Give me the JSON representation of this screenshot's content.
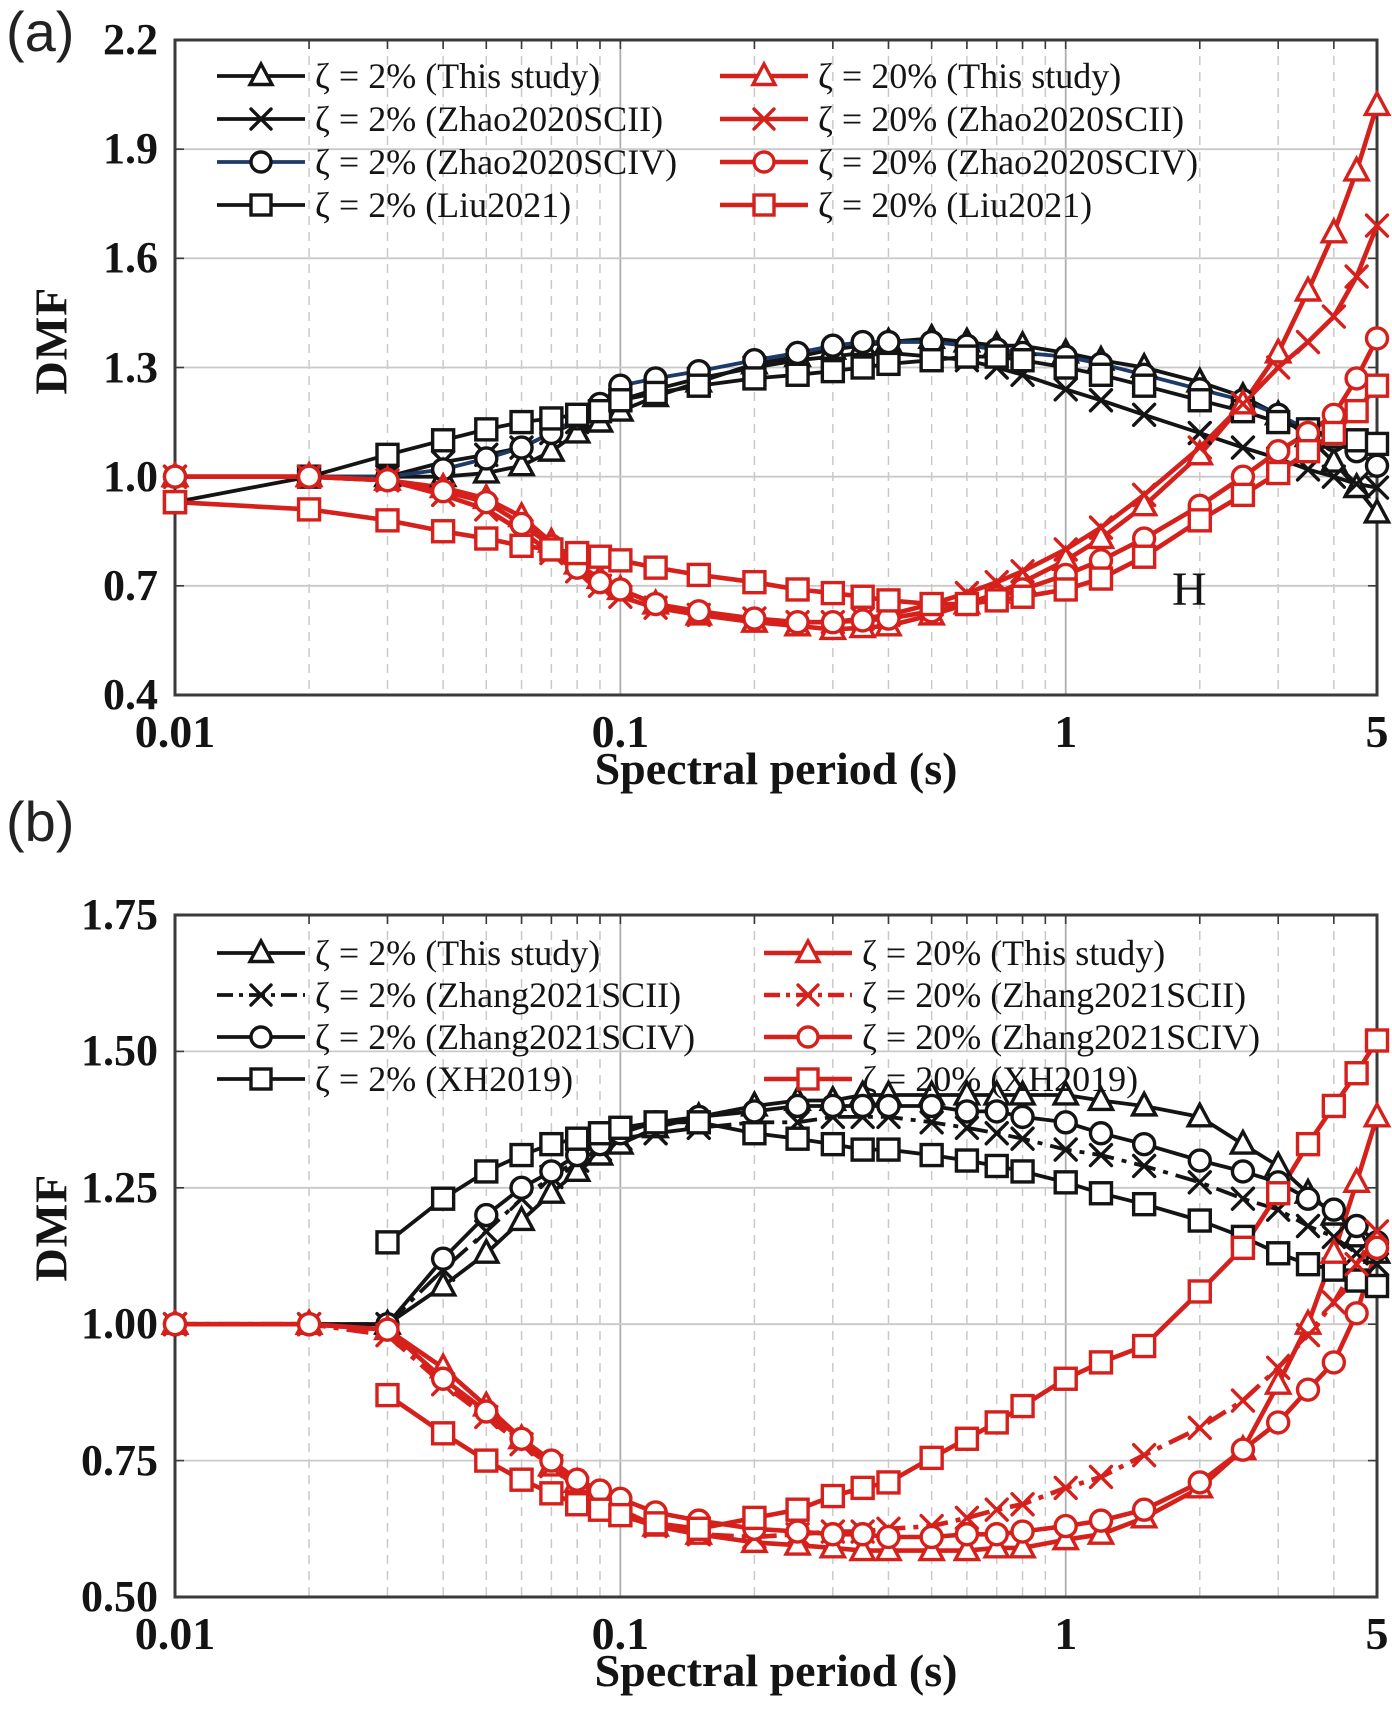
{
  "chart_data": [
    {
      "type": "line",
      "panel_label": "(a)",
      "ylabel": "DMF",
      "xlabel": "Spectral period (s)",
      "annotation": "H",
      "x_scale": "log",
      "xlim": [
        0.01,
        5
      ],
      "ylim": [
        0.4,
        2.2
      ],
      "y_ticks": [
        {
          "v": 2.2,
          "label": "2.2"
        },
        {
          "v": 1.9,
          "label": "1.9"
        },
        {
          "v": 1.6,
          "label": "1.6"
        },
        {
          "v": 1.3,
          "label": "1.3"
        },
        {
          "v": 1.0,
          "label": "1.0"
        },
        {
          "v": 0.7,
          "label": "0.7"
        },
        {
          "v": 0.4,
          "label": "0.4"
        }
      ],
      "x_ticks": [
        {
          "v": 0.01,
          "label": "0.01"
        },
        {
          "v": 0.1,
          "label": "0.1"
        },
        {
          "v": 1,
          "label": "1"
        },
        {
          "v": 5,
          "label": "5"
        }
      ],
      "grid": true,
      "legend_position": "top-inside, two columns",
      "x": [
        0.01,
        0.02,
        0.03,
        0.04,
        0.05,
        0.06,
        0.07,
        0.08,
        0.09,
        0.1,
        0.12,
        0.15,
        0.2,
        0.25,
        0.3,
        0.35,
        0.4,
        0.5,
        0.6,
        0.7,
        0.8,
        1,
        1.2,
        1.5,
        2,
        2.5,
        3,
        3.5,
        4,
        4.5,
        5
      ],
      "series": [
        {
          "name": "ζ = 2% (This study)",
          "marker": "triangle",
          "color": "#141414",
          "line_color": "#141414",
          "dash": null,
          "values": [
            1.0,
            1.0,
            1.0,
            1.0,
            1.01,
            1.03,
            1.07,
            1.12,
            1.15,
            1.18,
            1.22,
            1.26,
            1.31,
            1.33,
            1.35,
            1.36,
            1.37,
            1.38,
            1.37,
            1.36,
            1.36,
            1.34,
            1.32,
            1.3,
            1.26,
            1.22,
            1.17,
            1.11,
            1.04,
            0.97,
            0.9
          ]
        },
        {
          "name": "ζ = 2% (Zhao2020SCII)",
          "marker": "x",
          "color": "#141414",
          "line_color": "#141414",
          "dash": null,
          "values": [
            1.0,
            1.0,
            1.0,
            1.04,
            1.06,
            1.08,
            1.12,
            1.15,
            1.18,
            1.21,
            1.24,
            1.27,
            1.3,
            1.32,
            1.33,
            1.34,
            1.34,
            1.33,
            1.32,
            1.3,
            1.28,
            1.24,
            1.21,
            1.17,
            1.12,
            1.08,
            1.05,
            1.02,
            1.0,
            0.98,
            0.97
          ]
        },
        {
          "name": "ζ = 2% (Zhao2020SCIV)",
          "marker": "circle",
          "color": "#141414",
          "line_color": "#1e3a68",
          "dash": null,
          "values": [
            1.0,
            1.0,
            1.0,
            1.02,
            1.05,
            1.08,
            1.12,
            1.16,
            1.2,
            1.25,
            1.27,
            1.29,
            1.32,
            1.34,
            1.36,
            1.37,
            1.37,
            1.37,
            1.36,
            1.35,
            1.34,
            1.33,
            1.31,
            1.28,
            1.24,
            1.21,
            1.17,
            1.13,
            1.1,
            1.07,
            1.03
          ]
        },
        {
          "name": "ζ = 2% (Liu2021)",
          "marker": "square",
          "color": "#141414",
          "line_color": "#141414",
          "dash": null,
          "values": [
            0.93,
            1.0,
            1.06,
            1.1,
            1.13,
            1.15,
            1.16,
            1.17,
            1.18,
            1.21,
            1.23,
            1.25,
            1.27,
            1.28,
            1.29,
            1.3,
            1.31,
            1.32,
            1.33,
            1.33,
            1.32,
            1.3,
            1.28,
            1.25,
            1.21,
            1.18,
            1.15,
            1.13,
            1.11,
            1.1,
            1.09
          ]
        },
        {
          "name": "ζ = 20% (This study)",
          "marker": "triangle",
          "color": "#d6201c",
          "line_color": "#d6201c",
          "dash": null,
          "values": [
            1.0,
            1.0,
            0.99,
            0.97,
            0.94,
            0.89,
            0.82,
            0.76,
            0.72,
            0.69,
            0.65,
            0.62,
            0.6,
            0.59,
            0.58,
            0.585,
            0.59,
            0.62,
            0.65,
            0.68,
            0.71,
            0.77,
            0.83,
            0.92,
            1.06,
            1.2,
            1.34,
            1.51,
            1.67,
            1.84,
            2.02
          ]
        },
        {
          "name": "ζ = 20% (Zhao2020SCII)",
          "marker": "x",
          "color": "#d6201c",
          "line_color": "#d6201c",
          "dash": null,
          "values": [
            1.0,
            1.0,
            0.99,
            0.95,
            0.91,
            0.85,
            0.79,
            0.74,
            0.7,
            0.67,
            0.64,
            0.62,
            0.61,
            0.6,
            0.6,
            0.61,
            0.62,
            0.65,
            0.68,
            0.71,
            0.74,
            0.8,
            0.86,
            0.95,
            1.08,
            1.2,
            1.3,
            1.37,
            1.44,
            1.55,
            1.69
          ]
        },
        {
          "name": "ζ = 20% (Zhao2020SCIV)",
          "marker": "circle",
          "color": "#d6201c",
          "line_color": "#d6201c",
          "dash": null,
          "values": [
            1.0,
            1.0,
            0.99,
            0.96,
            0.93,
            0.87,
            0.81,
            0.75,
            0.71,
            0.69,
            0.65,
            0.63,
            0.61,
            0.6,
            0.6,
            0.605,
            0.61,
            0.63,
            0.65,
            0.67,
            0.69,
            0.73,
            0.77,
            0.83,
            0.92,
            1.0,
            1.07,
            1.12,
            1.17,
            1.27,
            1.38
          ]
        },
        {
          "name": "ζ = 20% (Liu2021)",
          "marker": "square",
          "color": "#d6201c",
          "line_color": "#d6201c",
          "dash": null,
          "values": [
            0.93,
            0.91,
            0.88,
            0.85,
            0.83,
            0.81,
            0.8,
            0.79,
            0.78,
            0.77,
            0.75,
            0.73,
            0.71,
            0.69,
            0.68,
            0.67,
            0.66,
            0.65,
            0.65,
            0.66,
            0.67,
            0.69,
            0.72,
            0.78,
            0.88,
            0.95,
            1.01,
            1.07,
            1.12,
            1.18,
            1.25
          ]
        }
      ]
    },
    {
      "type": "line",
      "panel_label": "(b)",
      "ylabel": "DMF",
      "xlabel": "Spectral period (s)",
      "annotation": "",
      "x_scale": "log",
      "xlim": [
        0.01,
        5
      ],
      "ylim": [
        0.5,
        1.75
      ],
      "y_ticks": [
        {
          "v": 1.75,
          "label": "1.75"
        },
        {
          "v": 1.5,
          "label": "1.50"
        },
        {
          "v": 1.25,
          "label": "1.25"
        },
        {
          "v": 1.0,
          "label": "1.00"
        },
        {
          "v": 0.75,
          "label": "0.75"
        },
        {
          "v": 0.5,
          "label": "0.50"
        }
      ],
      "x_ticks": [
        {
          "v": 0.01,
          "label": "0.01"
        },
        {
          "v": 0.1,
          "label": "0.1"
        },
        {
          "v": 1,
          "label": "1"
        },
        {
          "v": 5,
          "label": "5"
        }
      ],
      "grid": true,
      "legend_position": "top-inside, two columns",
      "x": [
        0.01,
        0.02,
        0.03,
        0.04,
        0.05,
        0.06,
        0.07,
        0.08,
        0.09,
        0.1,
        0.12,
        0.15,
        0.2,
        0.25,
        0.3,
        0.35,
        0.4,
        0.5,
        0.6,
        0.7,
        0.8,
        1,
        1.2,
        1.5,
        2,
        2.5,
        3,
        3.5,
        4,
        4.5,
        5
      ],
      "series": [
        {
          "name": "ζ = 2% (This study)",
          "marker": "triangle",
          "color": "#141414",
          "line_color": "#141414",
          "dash": null,
          "values": [
            1.0,
            1.0,
            1.0,
            1.07,
            1.13,
            1.19,
            1.24,
            1.28,
            1.31,
            1.33,
            1.36,
            1.38,
            1.4,
            1.41,
            1.41,
            1.42,
            1.42,
            1.42,
            1.42,
            1.42,
            1.42,
            1.42,
            1.41,
            1.4,
            1.38,
            1.33,
            1.29,
            1.24,
            1.2,
            1.16,
            1.13
          ]
        },
        {
          "name": "ζ = 2% (Zhang2021SCII)",
          "marker": "x",
          "color": "#141414",
          "line_color": "#141414",
          "dash": "22,8,5,8",
          "values": [
            1.0,
            1.0,
            1.0,
            1.1,
            1.17,
            1.23,
            1.27,
            1.3,
            1.32,
            1.34,
            1.35,
            1.36,
            1.37,
            1.37,
            1.38,
            1.38,
            1.38,
            1.37,
            1.36,
            1.35,
            1.34,
            1.32,
            1.31,
            1.29,
            1.26,
            1.23,
            1.21,
            1.18,
            1.16,
            1.13,
            1.11
          ]
        },
        {
          "name": "ζ = 2% (Zhang2021SCIV)",
          "marker": "circle",
          "color": "#141414",
          "line_color": "#141414",
          "dash": null,
          "values": [
            1.0,
            1.0,
            1.0,
            1.12,
            1.2,
            1.25,
            1.28,
            1.31,
            1.33,
            1.35,
            1.37,
            1.38,
            1.39,
            1.4,
            1.4,
            1.4,
            1.4,
            1.4,
            1.39,
            1.39,
            1.38,
            1.37,
            1.35,
            1.33,
            1.3,
            1.28,
            1.26,
            1.23,
            1.21,
            1.18,
            1.15
          ]
        },
        {
          "name": "ζ = 2% (XH2019)",
          "marker": "square",
          "color": "#141414",
          "line_color": "#141414",
          "dash": null,
          "values": [
            null,
            null,
            1.15,
            1.23,
            1.28,
            1.31,
            1.33,
            1.34,
            1.35,
            1.36,
            1.37,
            1.37,
            1.35,
            1.34,
            1.33,
            1.32,
            1.32,
            1.31,
            1.3,
            1.29,
            1.28,
            1.26,
            1.24,
            1.22,
            1.19,
            1.16,
            1.13,
            1.11,
            1.1,
            1.08,
            1.07
          ]
        },
        {
          "name": "ζ = 20% (This study)",
          "marker": "triangle",
          "color": "#d6201c",
          "line_color": "#d6201c",
          "dash": null,
          "values": [
            1.0,
            1.0,
            0.99,
            0.92,
            0.85,
            0.79,
            0.74,
            0.71,
            0.68,
            0.66,
            0.63,
            0.615,
            0.6,
            0.595,
            0.59,
            0.585,
            0.585,
            0.585,
            0.585,
            0.59,
            0.59,
            0.605,
            0.615,
            0.645,
            0.7,
            0.77,
            0.89,
            1.0,
            1.13,
            1.26,
            1.38
          ]
        },
        {
          "name": "ζ = 20% (Zhang2021SCII)",
          "marker": "x",
          "color": "#d6201c",
          "line_color": "#d6201c",
          "dash": "22,8,5,8",
          "values": [
            1.0,
            1.0,
            0.98,
            0.89,
            0.83,
            0.78,
            0.74,
            0.7,
            0.67,
            0.65,
            0.63,
            0.615,
            0.61,
            0.615,
            0.62,
            0.62,
            0.625,
            0.63,
            0.645,
            0.66,
            0.67,
            0.7,
            0.72,
            0.76,
            0.81,
            0.86,
            0.92,
            0.98,
            1.04,
            1.11,
            1.17
          ]
        },
        {
          "name": "ζ = 20% (Zhang2021SCIV)",
          "marker": "circle",
          "color": "#d6201c",
          "line_color": "#d6201c",
          "dash": null,
          "values": [
            1.0,
            1.0,
            0.99,
            0.9,
            0.84,
            0.79,
            0.75,
            0.715,
            0.695,
            0.68,
            0.655,
            0.64,
            0.625,
            0.62,
            0.615,
            0.615,
            0.61,
            0.61,
            0.615,
            0.615,
            0.62,
            0.63,
            0.64,
            0.66,
            0.71,
            0.77,
            0.82,
            0.88,
            0.93,
            1.02,
            1.14
          ]
        },
        {
          "name": "ζ = 20% (XH2019)",
          "marker": "square",
          "color": "#d6201c",
          "line_color": "#d6201c",
          "dash": null,
          "values": [
            null,
            null,
            0.87,
            0.8,
            0.75,
            0.715,
            0.69,
            0.67,
            0.66,
            0.65,
            0.635,
            0.625,
            0.645,
            0.66,
            0.685,
            0.7,
            0.71,
            0.755,
            0.79,
            0.82,
            0.85,
            0.9,
            0.93,
            0.96,
            1.06,
            1.14,
            1.24,
            1.33,
            1.4,
            1.46,
            1.52
          ]
        }
      ]
    }
  ],
  "colors": {
    "black_series": "#141414",
    "red_series": "#d6201c",
    "navy_line": "#1e3a68",
    "grid_minor": "#c9c9c9",
    "grid_major": "#aeaeae",
    "border": "#3a3a3a"
  }
}
